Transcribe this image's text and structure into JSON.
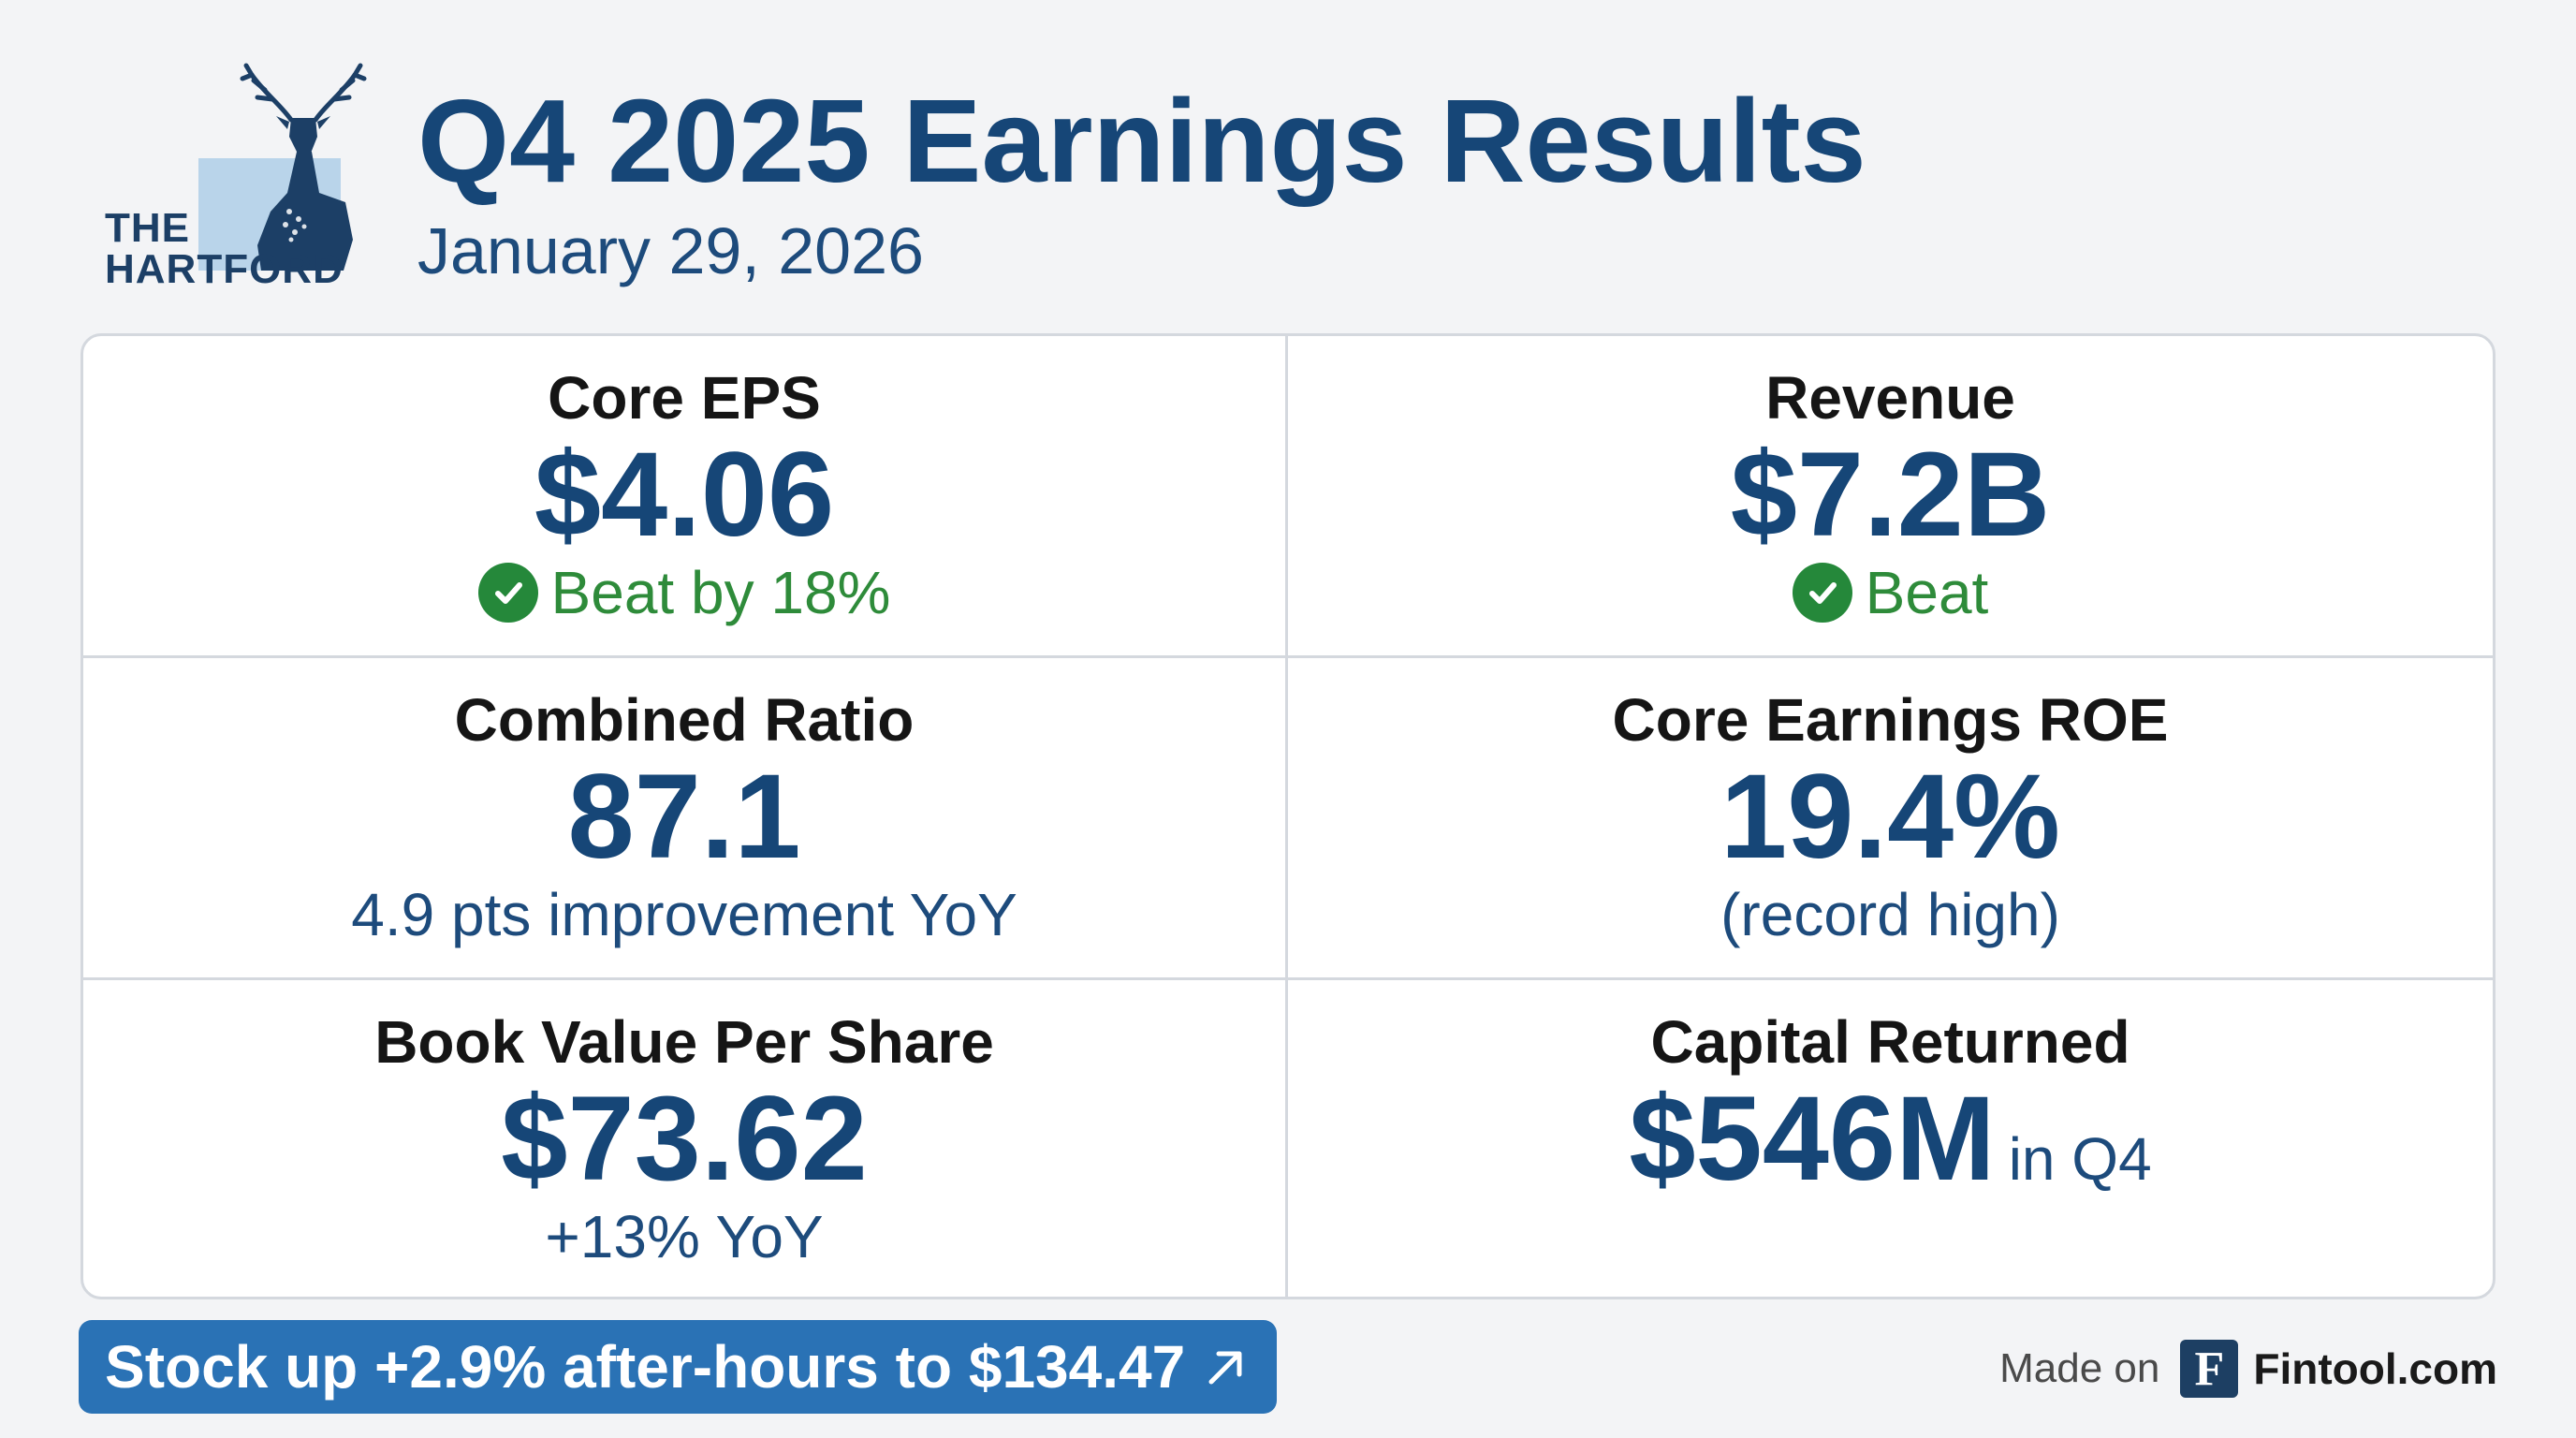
{
  "header": {
    "logo_line1": "THE",
    "logo_line2": "HARTFORD",
    "title": "Q4 2025 Earnings Results",
    "date": "January 29, 2026"
  },
  "metrics": [
    {
      "label": "Core EPS",
      "value": "$4.06",
      "note": "Beat by 18%",
      "note_status": "beat"
    },
    {
      "label": "Revenue",
      "value": "$7.2B",
      "note": "Beat",
      "note_status": "beat"
    },
    {
      "label": "Combined Ratio",
      "value": "87.1",
      "note": "4.9 pts improvement YoY"
    },
    {
      "label": "Core Earnings ROE",
      "value": "19.4%",
      "note": "(record high)"
    },
    {
      "label": "Book Value Per Share",
      "value": "$73.62",
      "note": "+13% YoY"
    },
    {
      "label": "Capital Returned",
      "value": "$546M",
      "value_suffix": "in Q4"
    }
  ],
  "footer": {
    "stock_text": "Stock up +2.9% after-hours to $134.47",
    "stock_icon": "arrow-up-right-icon",
    "made_on": "Made on",
    "brand_letter": "F",
    "brand_name": "Fintool.com"
  },
  "colors": {
    "primary_navy": "#164677",
    "beat_green": "#2e8b3a",
    "badge_blue": "#2a72b5",
    "background": "#f3f4f6"
  }
}
